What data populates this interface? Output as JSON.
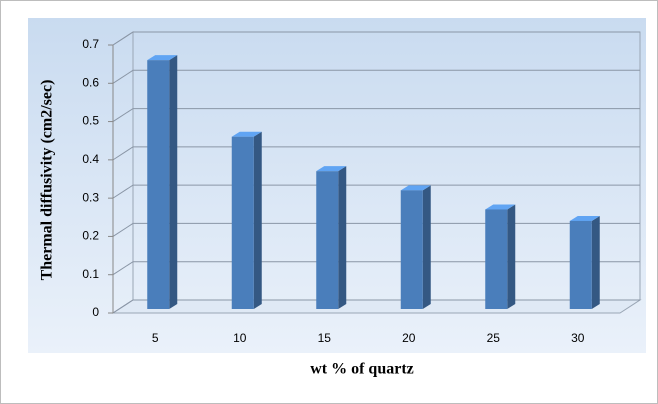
{
  "chart_data": {
    "type": "bar3d",
    "x_label": "wt % of quartz",
    "y_label": "Thermal diffusivity (cm2/sec)",
    "categories": [
      "5",
      "10",
      "15",
      "20",
      "25",
      "30"
    ],
    "values": [
      0.65,
      0.45,
      0.36,
      0.31,
      0.26,
      0.23
    ],
    "color": "#4a7ebb",
    "ylim": [
      0,
      0.7
    ],
    "yticks": [
      0,
      0.1,
      0.2,
      0.3,
      0.4,
      0.5,
      0.6,
      0.7
    ],
    "grid": true
  }
}
